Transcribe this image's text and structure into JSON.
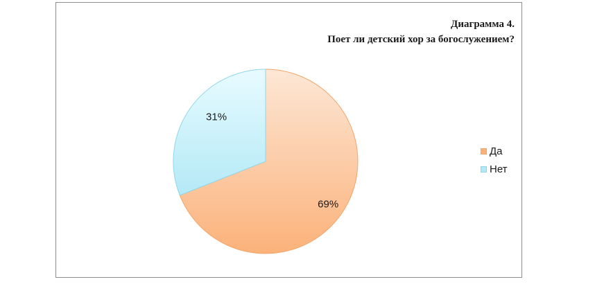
{
  "chart_data": {
    "type": "pie",
    "title_line1": "Диаграмма 4.",
    "title_line2": "Поет ли детский хор за богослужением?",
    "categories": [
      "Да",
      "Нет"
    ],
    "values": [
      69,
      31
    ],
    "data_labels": [
      "69%",
      "31%"
    ],
    "colors": {
      "Да": {
        "fill_light": "#fde7d6",
        "fill_dark": "#fbb27a",
        "stroke": "#f2a56b"
      },
      "Нет": {
        "fill_light": "#e8fbff",
        "fill_dark": "#b3e9f6",
        "stroke": "#8fd6ea"
      }
    },
    "legend_position": "right"
  }
}
